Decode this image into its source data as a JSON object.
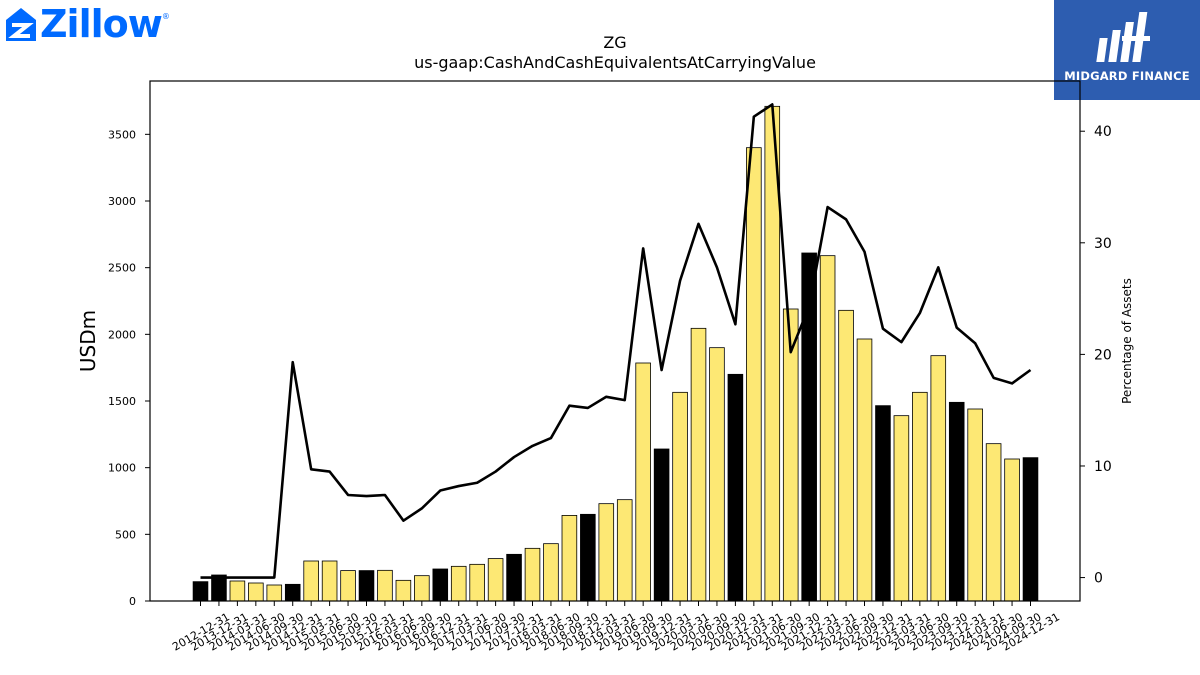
{
  "branding": {
    "left_logo_text": "Zillow",
    "left_logo_mark": "®",
    "right_logo_text": "MIDGARD FINANCE",
    "right_logo_bg": "#2d5db0",
    "left_logo_color": "#006aff"
  },
  "chart_data": {
    "type": "bar",
    "title": "ZG",
    "subtitle": "us-gaap:CashAndCashEquivalentsAtCarryingValue",
    "ylabel": "USDm",
    "y2label": "Percentage of Assets",
    "ylim": [
      0,
      3900
    ],
    "y2lim": [
      -2.1,
      44.5
    ],
    "yticks": [
      0,
      500,
      1000,
      1500,
      2000,
      2500,
      3000,
      3500
    ],
    "y2ticks": [
      0,
      10,
      20,
      30,
      40
    ],
    "categories": [
      "2012-12-31",
      "2013-12-31",
      "2014-03-31",
      "2014-06-30",
      "2014-09-30",
      "2014-12-31",
      "2015-03-31",
      "2015-06-30",
      "2015-09-30",
      "2015-12-31",
      "2016-03-31",
      "2016-06-30",
      "2016-09-30",
      "2016-12-31",
      "2017-03-31",
      "2017-06-30",
      "2017-09-30",
      "2017-12-31",
      "2018-03-31",
      "2018-06-30",
      "2018-09-30",
      "2018-12-31",
      "2019-03-31",
      "2019-06-30",
      "2019-09-30",
      "2019-12-31",
      "2020-03-31",
      "2020-06-30",
      "2020-09-30",
      "2020-12-31",
      "2021-03-31",
      "2021-06-30",
      "2021-09-30",
      "2021-12-31",
      "2022-03-31",
      "2022-06-30",
      "2022-09-30",
      "2022-12-31",
      "2023-03-31",
      "2023-06-30",
      "2023-09-30",
      "2023-12-31",
      "2024-03-31",
      "2024-06-30",
      "2024-09-30",
      "2024-12-31"
    ],
    "series": [
      {
        "kind": "bar",
        "values": [
          145,
          195,
          150,
          135,
          120,
          125,
          300,
          300,
          228,
          228,
          230,
          155,
          190,
          240,
          260,
          275,
          318,
          350,
          395,
          430,
          642,
          650,
          730,
          760,
          1785,
          1140,
          1565,
          2045,
          1900,
          1700,
          3400,
          3710,
          2190,
          2610,
          2590,
          2180,
          1965,
          1465,
          1390,
          1565,
          1840,
          1490,
          1440,
          1180,
          1065,
          1075
        ],
        "highlight": [
          true,
          true,
          false,
          false,
          false,
          true,
          false,
          false,
          false,
          true,
          false,
          false,
          false,
          true,
          false,
          false,
          false,
          true,
          false,
          false,
          false,
          true,
          false,
          false,
          false,
          true,
          false,
          false,
          false,
          true,
          false,
          false,
          false,
          true,
          false,
          false,
          false,
          true,
          false,
          false,
          false,
          true,
          false,
          false,
          false,
          true
        ],
        "color": "#fde874",
        "highlight_color": "#000000"
      },
      {
        "kind": "line",
        "axis": "right",
        "values": [
          0,
          0,
          0,
          0,
          0,
          19.3,
          9.7,
          9.5,
          7.4,
          7.3,
          7.4,
          5.1,
          6.2,
          7.8,
          8.2,
          8.5,
          9.5,
          10.8,
          11.8,
          12.5,
          15.4,
          15.2,
          16.2,
          15.9,
          29.5,
          18.6,
          26.6,
          31.7,
          27.8,
          22.7,
          41.3,
          42.4,
          20.2,
          24.3,
          33.2,
          32.1,
          29.2,
          22.3,
          21.1,
          23.7,
          27.8,
          22.4,
          21.0,
          17.9,
          17.4,
          18.6
        ],
        "color": "#000000"
      }
    ],
    "grid": false,
    "legend": "none"
  }
}
